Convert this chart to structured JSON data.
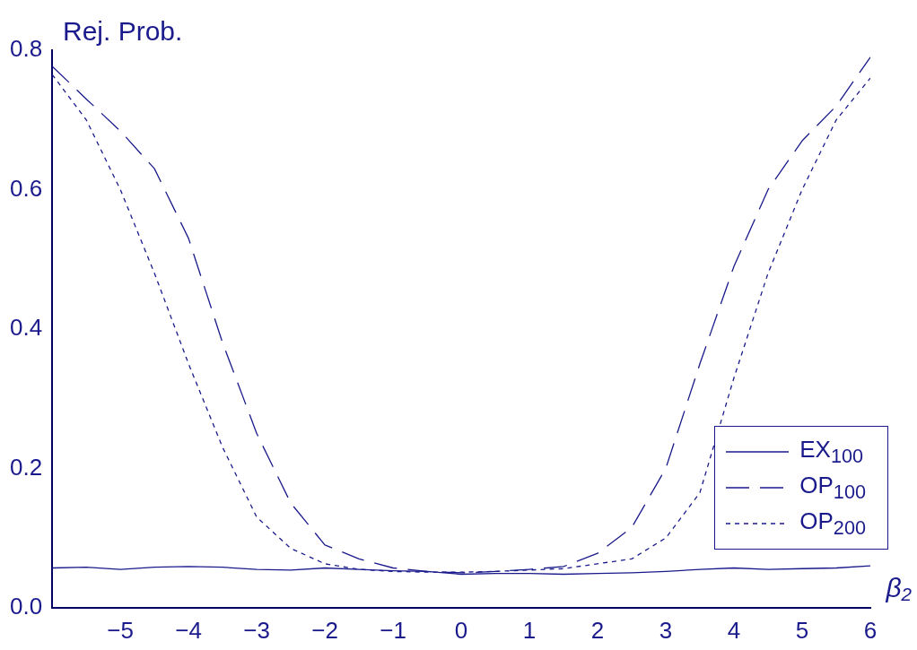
{
  "chart_data": {
    "type": "line",
    "xlabel": "β₂",
    "ylabel": "Rej. Prob.",
    "x": [
      -6,
      -5.5,
      -5,
      -4.5,
      -4,
      -3.5,
      -3,
      -2.5,
      -2,
      -1.5,
      -1,
      -0.5,
      0,
      0.5,
      1,
      1.5,
      2,
      2.5,
      3,
      3.5,
      4,
      4.5,
      5,
      5.5,
      6
    ],
    "series": [
      {
        "name": "EX$_{100}$",
        "color": "#1a1a8c",
        "line_style": "solid",
        "values": [
          0.057,
          0.058,
          0.055,
          0.058,
          0.059,
          0.058,
          0.055,
          0.054,
          0.057,
          0.055,
          0.053,
          0.052,
          0.048,
          0.049,
          0.049,
          0.048,
          0.049,
          0.05,
          0.052,
          0.055,
          0.057,
          0.055,
          0.056,
          0.057,
          0.06
        ]
      },
      {
        "name": "OP$_{100}$",
        "color": "#1a1a8c",
        "line_style": "dashed",
        "values": [
          0.777,
          0.73,
          0.684,
          0.63,
          0.53,
          0.38,
          0.25,
          0.15,
          0.09,
          0.07,
          0.057,
          0.052,
          0.05,
          0.052,
          0.055,
          0.059,
          0.078,
          0.115,
          0.2,
          0.35,
          0.49,
          0.6,
          0.67,
          0.72,
          0.79
        ]
      },
      {
        "name": "OP$_{200}$",
        "color": "#1a1a8c",
        "line_style": "dotted",
        "values": [
          0.765,
          0.7,
          0.6,
          0.48,
          0.35,
          0.23,
          0.13,
          0.085,
          0.063,
          0.055,
          0.052,
          0.051,
          0.051,
          0.052,
          0.054,
          0.056,
          0.063,
          0.07,
          0.1,
          0.165,
          0.33,
          0.48,
          0.6,
          0.7,
          0.76
        ]
      }
    ],
    "xlim": [
      -6,
      6
    ],
    "xticks": [
      -5,
      -4,
      -3,
      -2,
      -1,
      0,
      1,
      2,
      3,
      4,
      5,
      6
    ],
    "ylim": [
      0,
      0.8
    ],
    "yticks": [
      {
        "value": 0,
        "label": "0.0"
      },
      {
        "value": 0.2,
        "label": "0.2"
      },
      {
        "value": 0.4,
        "label": "0.4"
      },
      {
        "value": 0.6,
        "label": "0.6"
      },
      {
        "value": 0.8,
        "label": "0.8"
      }
    ],
    "grid": false,
    "legend": "bottom right",
    "marker": "none"
  }
}
